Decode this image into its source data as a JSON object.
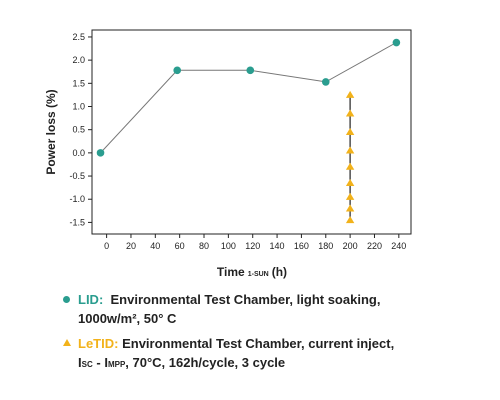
{
  "chart_data": {
    "type": "line",
    "xlabel": "Time",
    "xlabel_sub": "1-SUN",
    "xlabel_unit": "(h)",
    "ylabel": "Power loss (%)",
    "xlim": [
      -12,
      250
    ],
    "ylim": [
      -1.75,
      2.65
    ],
    "x_ticks": [
      0,
      20,
      40,
      60,
      80,
      100,
      120,
      140,
      160,
      180,
      200,
      220,
      240
    ],
    "y_ticks": [
      -1.5,
      -1.0,
      -0.5,
      0.0,
      0.5,
      1.0,
      1.5,
      2.0,
      2.5
    ],
    "y_tick_labels": [
      "-1.5",
      "-1.0",
      "-0.5",
      "0.0",
      "0.5",
      "1.0",
      "1.5",
      "2.0",
      "2.5"
    ],
    "x_tick_labels": [
      "0",
      "20",
      "40",
      "60",
      "80",
      "100",
      "120",
      "140",
      "160",
      "180",
      "200",
      "220",
      "240"
    ],
    "grid": false,
    "series": [
      {
        "name": "LID",
        "marker": "circle",
        "color": "#2a9d8f",
        "connected": true,
        "x": [
          -5,
          58,
          118,
          180,
          238
        ],
        "y": [
          0.0,
          1.78,
          1.78,
          1.53,
          2.38
        ]
      },
      {
        "name": "LeTID",
        "marker": "triangle",
        "color": "#f2b21a",
        "connected": true,
        "x": [
          200,
          200,
          200,
          200,
          200,
          200,
          200,
          200,
          200
        ],
        "y": [
          -1.45,
          -1.2,
          -0.95,
          -0.65,
          -0.3,
          0.05,
          0.45,
          0.85,
          1.25
        ]
      }
    ]
  },
  "legend": {
    "lid": {
      "label": "LID:",
      "text1": "Environmental Test Chamber, light soaking,",
      "text2": "1000w/m², 50° C"
    },
    "letid": {
      "label": "LeTID:",
      "text1": "Environmental Test Chamber, current inject,",
      "isc_main": "I",
      "isc_sub": "SC",
      "dash": " - ",
      "impp_main": "I",
      "impp_sub": "MPP",
      "text2_rest": ", 70°C, 162h/cycle, 3 cycle"
    }
  },
  "colors": {
    "line": "#777777",
    "axis": "#222222"
  }
}
